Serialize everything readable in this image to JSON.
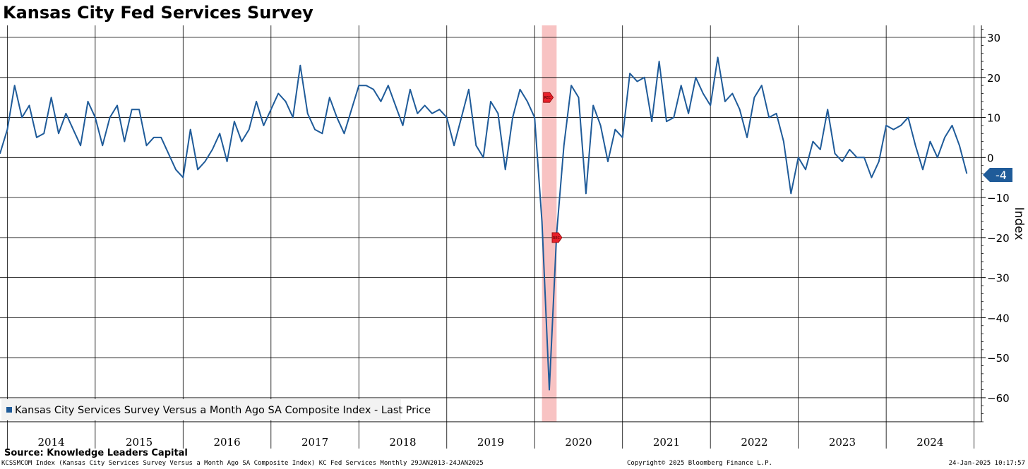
{
  "title": "Kansas City Fed Services Survey",
  "source": "Source: Knowledge Leaders Capital",
  "footer": {
    "left": "KCSSMCOM Index (Kansas City Services Survey Versus a Month Ago SA Composite Index) KC Fed Services  Monthly 29JAN2013-24JAN2025",
    "middle": "Copyright© 2025 Bloomberg Finance L.P.",
    "right": "24-Jan-2025 10:17:57"
  },
  "colors": {
    "line": "#1f5b99",
    "recession_band": "#f7b8b8",
    "recession_marker": "#e8202a",
    "last_price_label": "#1f5b99",
    "legend_bg": "#f2f2f2"
  },
  "chart_data": {
    "type": "line",
    "title": "Kansas City Fed Services Survey",
    "ylabel": "Index",
    "ylim": [
      -66,
      33
    ],
    "y_ticks": [
      30,
      20,
      10,
      0,
      -10,
      -20,
      -30,
      -40,
      -50,
      -60
    ],
    "x_range": [
      "2013-12",
      "2025-01"
    ],
    "x_labels": [
      "2014",
      "2015",
      "2016",
      "2017",
      "2018",
      "2019",
      "2020",
      "2021",
      "2022",
      "2023",
      "2024"
    ],
    "grid": true,
    "legend": "Kansas City Services Survey Versus a Month Ago SA Composite Index - Last Price",
    "legend_position": "bottom-left",
    "last_value_label": "-4",
    "recession_band": {
      "start": "2020-02",
      "end": "2020-04",
      "marker": "REC"
    },
    "series": [
      {
        "name": "Kansas City Services Survey Versus a Month Ago SA Composite Index - Last Price",
        "start": "2013-12",
        "values": [
          1,
          7,
          18,
          10,
          13,
          5,
          6,
          15,
          6,
          11,
          7,
          3,
          14,
          10,
          3,
          10,
          13,
          4,
          12,
          12,
          3,
          5,
          5,
          1,
          -3,
          -5,
          7,
          -3,
          -1,
          2,
          6,
          -1,
          9,
          4,
          7,
          14,
          8,
          12,
          16,
          14,
          10,
          23,
          11,
          7,
          6,
          15,
          10,
          6,
          12,
          18,
          18,
          17,
          14,
          18,
          13,
          8,
          17,
          11,
          13,
          11,
          12,
          10,
          3,
          10,
          17,
          3,
          0,
          14,
          11,
          -3,
          10,
          17,
          14,
          10,
          -16,
          -58,
          -19,
          3,
          18,
          15,
          -9,
          13,
          8,
          -1,
          7,
          5,
          21,
          19,
          20,
          9,
          24,
          9,
          10,
          18,
          11,
          20,
          16,
          13,
          25,
          14,
          16,
          12,
          5,
          15,
          18,
          10,
          11,
          4,
          -9,
          0,
          -3,
          4,
          2,
          12,
          1,
          -1,
          2,
          0,
          0,
          -5,
          -1,
          8,
          7,
          8,
          10,
          3,
          -3,
          4,
          0,
          5,
          8,
          3,
          -4
        ]
      }
    ]
  }
}
